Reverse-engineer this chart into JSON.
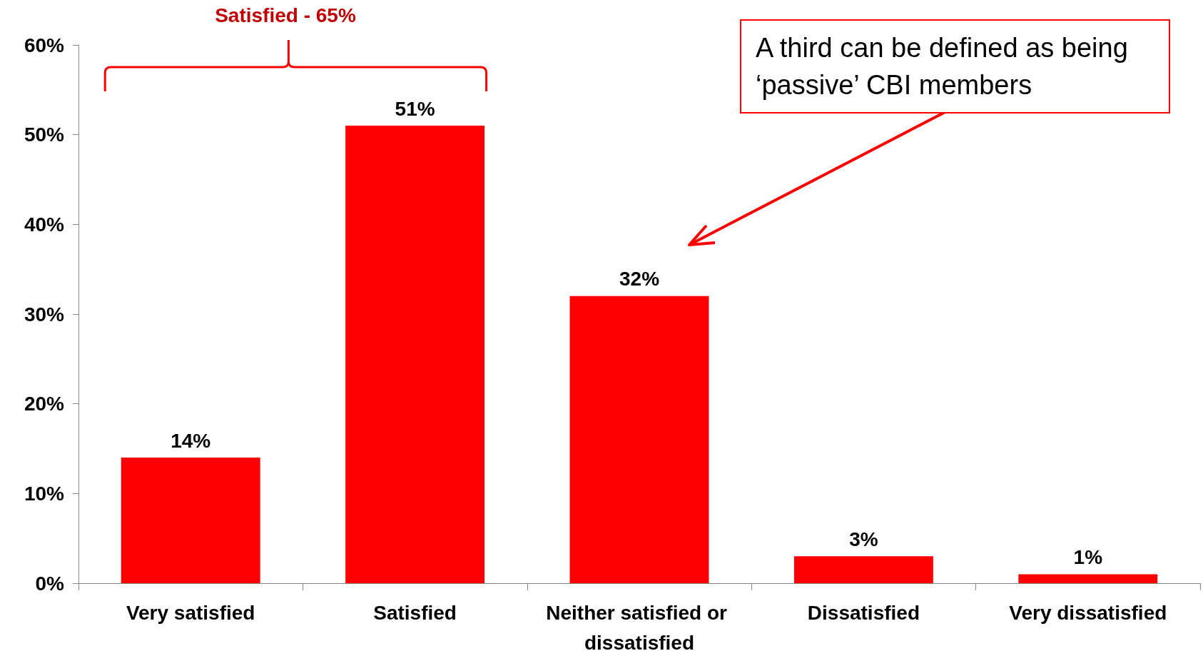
{
  "chart_data": {
    "type": "bar",
    "categories": [
      "Very satisfied",
      "Satisfied",
      "Neither satisfied or dissatisfied",
      "Dissatisfied",
      "Very dissatisfied"
    ],
    "values": [
      14,
      51,
      32,
      3,
      1
    ],
    "value_labels": [
      "14%",
      "51%",
      "32%",
      "3%",
      "1%"
    ],
    "color": "#ff0000",
    "ylim": [
      0,
      60
    ],
    "yticks": [
      {
        "value": 0,
        "label": "0%"
      },
      {
        "value": 10,
        "label": "10%"
      },
      {
        "value": 20,
        "label": "20%"
      },
      {
        "value": 30,
        "label": "30%"
      },
      {
        "value": 40,
        "label": "40%"
      },
      {
        "value": 50,
        "label": "50%"
      },
      {
        "value": 60,
        "label": "60%"
      }
    ],
    "grid": false,
    "annotations": [
      "Satisfied - 65%",
      "A third can be defined as being ‘passive’ CBI members"
    ]
  }
}
